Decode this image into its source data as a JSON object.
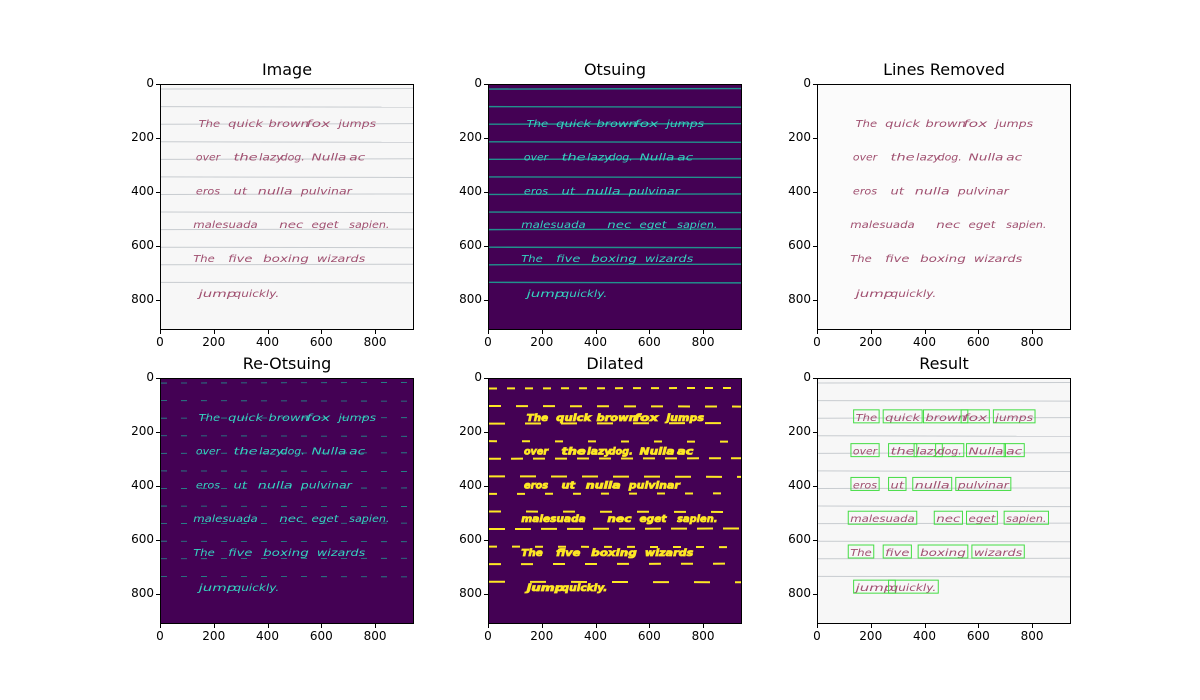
{
  "figure": {
    "panels": [
      {
        "id": "image",
        "title": "Image",
        "style": "original"
      },
      {
        "id": "otsuing",
        "title": "Otsuing",
        "style": "otsu"
      },
      {
        "id": "lines-removed",
        "title": "Lines Removed",
        "style": "removed"
      },
      {
        "id": "re-otsuing",
        "title": "Re-Otsuing",
        "style": "reotsu"
      },
      {
        "id": "dilated",
        "title": "Dilated",
        "style": "dilated"
      },
      {
        "id": "result",
        "title": "Result",
        "style": "result"
      }
    ],
    "x_ticks": [
      "0",
      "200",
      "400",
      "600",
      "800"
    ],
    "y_ticks": [
      "0",
      "200",
      "400",
      "600",
      "800"
    ],
    "x_tick_values": [
      0,
      200,
      400,
      600,
      800
    ],
    "y_tick_values": [
      0,
      200,
      400,
      600,
      800
    ],
    "x_range": [
      0,
      945
    ],
    "y_range": [
      0,
      910
    ],
    "text_lines": [
      [
        "The",
        "quick",
        "brown",
        "fox",
        "jumps"
      ],
      [
        "over",
        "the",
        "lazy",
        "dog.",
        "Nulla",
        "ac"
      ],
      [
        "eros",
        "ut",
        "nulla",
        "pulvinar"
      ],
      [
        "malesuada",
        "nec",
        "eget",
        "sapien."
      ],
      [
        "The",
        "five",
        "boxing",
        "wizards"
      ],
      [
        "jump",
        "quickly."
      ]
    ],
    "colors": {
      "ink": "#a05070",
      "paper": "#f7f7f7",
      "rule": "#c8ccd0",
      "viridis_bg": "#440154",
      "viridis_mid": "#21918c",
      "viridis_hi": "#35d3c0",
      "viridis_yellow": "#fde725",
      "box": "#44dd44"
    }
  }
}
